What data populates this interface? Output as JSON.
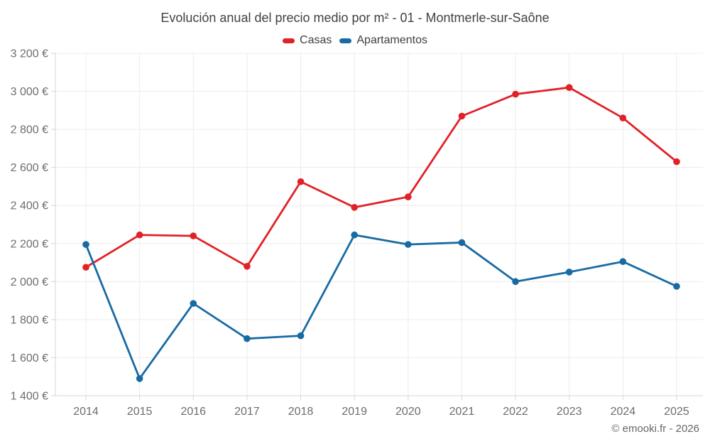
{
  "title": "Evolución anual del precio medio por m² - 01 - Montmerle-sur-Saône",
  "footer": "© emooki.fr - 2026",
  "theme": {
    "background": "#ffffff",
    "title_color": "#424242",
    "legend_text_color": "#3f3f3f",
    "grid": "#ececec",
    "axis": "#d4d4d4",
    "tick": "#6d6d6d",
    "footer_color": "#666666",
    "casas_red": "#e02127",
    "apartamentos_blue": "#186aa4"
  },
  "chart_data": {
    "type": "line",
    "title": "Evolución anual del precio medio por m² - 01 - Montmerle-sur-Saône",
    "x": [
      2014,
      2015,
      2016,
      2017,
      2018,
      2019,
      2020,
      2021,
      2022,
      2023,
      2024,
      2025
    ],
    "series": [
      {
        "name": "Casas",
        "color": "#e02127",
        "values": [
          2075,
          2245,
          2240,
          2080,
          2525,
          2390,
          2445,
          2870,
          2985,
          3020,
          2860,
          2630
        ]
      },
      {
        "name": "Apartamentos",
        "color": "#186aa4",
        "values": [
          2195,
          1490,
          1885,
          1700,
          1715,
          2245,
          2195,
          2205,
          2000,
          2050,
          2105,
          1975
        ]
      }
    ],
    "ylim": [
      1400,
      3200
    ],
    "ytick_step": 200,
    "ytick_suffix": " €",
    "xlabel": "",
    "ylabel": "",
    "grid": true,
    "legend_position": "top",
    "marker": "circle"
  }
}
